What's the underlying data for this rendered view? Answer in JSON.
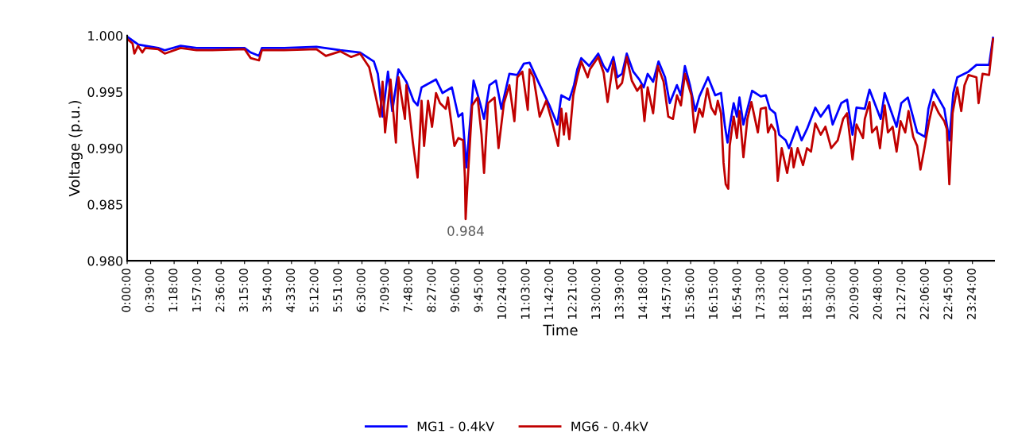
{
  "chart_data": {
    "type": "line",
    "xlabel": "Time",
    "ylabel": "Voltage (p.u.)",
    "xlim": [
      0,
      24
    ],
    "ylim": [
      0.98,
      1.0
    ],
    "xticks": [
      {
        "value": 0,
        "label": "0:00:00"
      },
      {
        "value": 0.65,
        "label": "0:39:00"
      },
      {
        "value": 1.3,
        "label": "1:18:00"
      },
      {
        "value": 1.95,
        "label": "1:57:00"
      },
      {
        "value": 2.6,
        "label": "2:36:00"
      },
      {
        "value": 3.25,
        "label": "3:15:00"
      },
      {
        "value": 3.9,
        "label": "3:54:00"
      },
      {
        "value": 4.55,
        "label": "4:33:00"
      },
      {
        "value": 5.2,
        "label": "5:12:00"
      },
      {
        "value": 5.85,
        "label": "5:51:00"
      },
      {
        "value": 6.5,
        "label": "6:30:00"
      },
      {
        "value": 7.15,
        "label": "7:09:00"
      },
      {
        "value": 7.8,
        "label": "7:48:00"
      },
      {
        "value": 8.45,
        "label": "8:27:00"
      },
      {
        "value": 9.1,
        "label": "9:06:00"
      },
      {
        "value": 9.75,
        "label": "9:45:00"
      },
      {
        "value": 10.4,
        "label": "10:24:00"
      },
      {
        "value": 11.05,
        "label": "11:03:00"
      },
      {
        "value": 11.7,
        "label": "11:42:00"
      },
      {
        "value": 12.35,
        "label": "12:21:00"
      },
      {
        "value": 13,
        "label": "13:00:00"
      },
      {
        "value": 13.65,
        "label": "13:39:00"
      },
      {
        "value": 14.3,
        "label": "14:18:00"
      },
      {
        "value": 14.95,
        "label": "14:57:00"
      },
      {
        "value": 15.6,
        "label": "15:36:00"
      },
      {
        "value": 16.25,
        "label": "16:15:00"
      },
      {
        "value": 16.9,
        "label": "16:54:00"
      },
      {
        "value": 17.55,
        "label": "17:33:00"
      },
      {
        "value": 18.2,
        "label": "18:12:00"
      },
      {
        "value": 18.85,
        "label": "18:51:00"
      },
      {
        "value": 19.5,
        "label": "19:30:00"
      },
      {
        "value": 20.15,
        "label": "20:09:00"
      },
      {
        "value": 20.8,
        "label": "20:48:00"
      },
      {
        "value": 21.45,
        "label": "21:27:00"
      },
      {
        "value": 22.1,
        "label": "22:06:00"
      },
      {
        "value": 22.75,
        "label": "22:45:00"
      },
      {
        "value": 23.4,
        "label": "23:24:00"
      }
    ],
    "yticks": [
      {
        "value": 0.98,
        "label": "0.980"
      },
      {
        "value": 0.985,
        "label": "0.985"
      },
      {
        "value": 0.99,
        "label": "0.990"
      },
      {
        "value": 0.995,
        "label": "0.995"
      },
      {
        "value": 1.0,
        "label": "1.000"
      }
    ],
    "grid": false,
    "legend": "bottom",
    "marker": "none",
    "line_style": "solid",
    "annotations": [
      {
        "text": "0.984",
        "x": 9.37,
        "y": 0.9837
      }
    ],
    "series": [
      {
        "name": "MG1 - 0.4kV",
        "color": "#0000ff",
        "x": [
          0,
          0.31,
          0.86,
          1.04,
          1.48,
          1.92,
          2.36,
          3.25,
          3.42,
          3.65,
          3.73,
          4.35,
          5.24,
          5.9,
          6.45,
          6.83,
          6.94,
          7.07,
          7.22,
          7.34,
          7.51,
          7.73,
          7.93,
          8.04,
          8.15,
          8.55,
          8.73,
          8.99,
          9.17,
          9.28,
          9.39,
          9.59,
          9.77,
          9.88,
          10.03,
          10.21,
          10.36,
          10.58,
          10.8,
          10.98,
          11.14,
          11.38,
          11.69,
          11.91,
          12.02,
          12.24,
          12.37,
          12.46,
          12.57,
          12.79,
          13.04,
          13.19,
          13.3,
          13.46,
          13.57,
          13.7,
          13.83,
          14.01,
          14.18,
          14.3,
          14.41,
          14.56,
          14.71,
          14.89,
          15.02,
          15.22,
          15.33,
          15.44,
          15.58,
          15.73,
          15.84,
          16.08,
          16.28,
          16.44,
          16.55,
          16.62,
          16.68,
          16.79,
          16.88,
          16.95,
          17.06,
          17.3,
          17.54,
          17.68,
          17.79,
          17.94,
          18.05,
          18.23,
          18.32,
          18.54,
          18.67,
          18.82,
          19.05,
          19.2,
          19.42,
          19.53,
          19.77,
          19.93,
          20.08,
          20.19,
          20.42,
          20.55,
          20.86,
          20.97,
          21.3,
          21.43,
          21.61,
          21.87,
          22.09,
          22.18,
          22.32,
          22.62,
          22.76,
          22.87,
          22.98,
          23.29,
          23.51,
          23.86,
          23.97
        ],
        "values": [
          0.9999,
          0.9992,
          0.9989,
          0.9987,
          0.9991,
          0.9989,
          0.9989,
          0.9989,
          0.9985,
          0.9982,
          0.9989,
          0.9989,
          0.999,
          0.9987,
          0.9985,
          0.9977,
          0.9966,
          0.9928,
          0.9968,
          0.9933,
          0.997,
          0.9959,
          0.9942,
          0.9938,
          0.9954,
          0.9961,
          0.9949,
          0.9954,
          0.9928,
          0.9931,
          0.9883,
          0.996,
          0.994,
          0.9926,
          0.9956,
          0.996,
          0.9935,
          0.9966,
          0.9965,
          0.9975,
          0.9976,
          0.9959,
          0.9938,
          0.9921,
          0.9947,
          0.9943,
          0.9956,
          0.997,
          0.998,
          0.9973,
          0.9984,
          0.9973,
          0.9968,
          0.9981,
          0.9963,
          0.9966,
          0.9984,
          0.9968,
          0.9961,
          0.9954,
          0.9966,
          0.9959,
          0.9977,
          0.9963,
          0.994,
          0.9956,
          0.9947,
          0.9973,
          0.9956,
          0.9933,
          0.9946,
          0.9963,
          0.9947,
          0.9949,
          0.9919,
          0.9905,
          0.9919,
          0.994,
          0.9928,
          0.9945,
          0.9921,
          0.9951,
          0.9946,
          0.9947,
          0.9935,
          0.9931,
          0.9912,
          0.9907,
          0.99,
          0.9919,
          0.9907,
          0.9917,
          0.9936,
          0.9928,
          0.9938,
          0.9921,
          0.994,
          0.9943,
          0.9912,
          0.9936,
          0.9935,
          0.9952,
          0.9926,
          0.9949,
          0.9919,
          0.994,
          0.9945,
          0.9914,
          0.991,
          0.9935,
          0.9952,
          0.9935,
          0.9907,
          0.9949,
          0.9963,
          0.9968,
          0.9974,
          0.9974,
          0.9998
        ]
      },
      {
        "name": "MG6 - 0.4kV",
        "color": "#c00000",
        "x": [
          0,
          0.15,
          0.2,
          0.3,
          0.42,
          0.5,
          0.86,
          1.04,
          1.48,
          1.92,
          2.36,
          3.25,
          3.42,
          3.65,
          3.73,
          4.35,
          5.24,
          5.5,
          5.9,
          6.2,
          6.45,
          6.7,
          6.86,
          7.0,
          7.07,
          7.14,
          7.29,
          7.44,
          7.51,
          7.69,
          7.73,
          7.91,
          8.04,
          8.15,
          8.22,
          8.33,
          8.44,
          8.55,
          8.66,
          8.82,
          8.88,
          9.06,
          9.17,
          9.3,
          9.35,
          9.37,
          9.41,
          9.55,
          9.7,
          9.81,
          9.88,
          9.99,
          10.17,
          10.28,
          10.43,
          10.58,
          10.72,
          10.8,
          10.94,
          11.09,
          11.14,
          11.25,
          11.42,
          11.6,
          11.76,
          11.93,
          12.02,
          12.09,
          12.15,
          12.24,
          12.35,
          12.46,
          12.57,
          12.75,
          12.81,
          13.04,
          13.19,
          13.3,
          13.46,
          13.57,
          13.7,
          13.83,
          13.97,
          14.12,
          14.23,
          14.32,
          14.41,
          14.56,
          14.69,
          14.85,
          14.98,
          15.11,
          15.22,
          15.33,
          15.44,
          15.62,
          15.71,
          15.84,
          15.93,
          16.06,
          16.17,
          16.28,
          16.35,
          16.44,
          16.51,
          16.57,
          16.64,
          16.68,
          16.79,
          16.88,
          16.95,
          17.06,
          17.17,
          17.28,
          17.46,
          17.54,
          17.68,
          17.74,
          17.83,
          17.94,
          18.01,
          18.12,
          18.27,
          18.39,
          18.45,
          18.56,
          18.71,
          18.82,
          18.93,
          19.05,
          19.2,
          19.33,
          19.49,
          19.67,
          19.82,
          19.93,
          20.08,
          20.19,
          20.37,
          20.42,
          20.55,
          20.62,
          20.75,
          20.84,
          20.97,
          21.06,
          21.19,
          21.3,
          21.41,
          21.54,
          21.63,
          21.76,
          21.87,
          21.96,
          22.07,
          22.2,
          22.32,
          22.47,
          22.62,
          22.69,
          22.76,
          22.85,
          22.98,
          23.09,
          23.18,
          23.29,
          23.51,
          23.57,
          23.68,
          23.86,
          23.97
        ],
        "values": [
          0.9997,
          0.9993,
          0.9984,
          0.9991,
          0.9985,
          0.9989,
          0.9988,
          0.9984,
          0.9989,
          0.9987,
          0.9987,
          0.9988,
          0.998,
          0.9978,
          0.9987,
          0.9987,
          0.9988,
          0.9982,
          0.9986,
          0.9981,
          0.9984,
          0.9972,
          0.9949,
          0.9928,
          0.9959,
          0.9914,
          0.9961,
          0.9905,
          0.9963,
          0.9926,
          0.9956,
          0.9905,
          0.9874,
          0.9942,
          0.9902,
          0.9942,
          0.9919,
          0.9949,
          0.994,
          0.9935,
          0.9945,
          0.9902,
          0.9909,
          0.9907,
          0.9874,
          0.9837,
          0.9862,
          0.9938,
          0.9945,
          0.9912,
          0.9878,
          0.994,
          0.9945,
          0.99,
          0.994,
          0.9956,
          0.9924,
          0.9963,
          0.9968,
          0.9934,
          0.997,
          0.9963,
          0.9928,
          0.9942,
          0.9924,
          0.9902,
          0.9935,
          0.9912,
          0.9931,
          0.9908,
          0.9947,
          0.9963,
          0.9977,
          0.9963,
          0.997,
          0.9981,
          0.9967,
          0.9941,
          0.9977,
          0.9953,
          0.9958,
          0.9981,
          0.996,
          0.9951,
          0.9956,
          0.9924,
          0.9954,
          0.9931,
          0.9973,
          0.9959,
          0.9928,
          0.9926,
          0.9947,
          0.9938,
          0.9966,
          0.9947,
          0.9914,
          0.9935,
          0.9928,
          0.9953,
          0.9936,
          0.993,
          0.9942,
          0.9931,
          0.9887,
          0.9868,
          0.9864,
          0.9902,
          0.9928,
          0.9909,
          0.9933,
          0.9892,
          0.9926,
          0.9941,
          0.9914,
          0.9935,
          0.9936,
          0.9914,
          0.9921,
          0.9915,
          0.9871,
          0.99,
          0.9878,
          0.99,
          0.9883,
          0.99,
          0.9885,
          0.99,
          0.9897,
          0.9922,
          0.9912,
          0.9919,
          0.99,
          0.9907,
          0.9926,
          0.9931,
          0.989,
          0.9921,
          0.9909,
          0.9926,
          0.9941,
          0.9914,
          0.9919,
          0.99,
          0.9938,
          0.9914,
          0.9919,
          0.9897,
          0.9924,
          0.9914,
          0.9933,
          0.991,
          0.9902,
          0.9881,
          0.99,
          0.9924,
          0.9941,
          0.9931,
          0.9924,
          0.9917,
          0.9868,
          0.9931,
          0.9954,
          0.9933,
          0.9956,
          0.9965,
          0.9963,
          0.994,
          0.9966,
          0.9965,
          0.9997
        ]
      }
    ]
  }
}
